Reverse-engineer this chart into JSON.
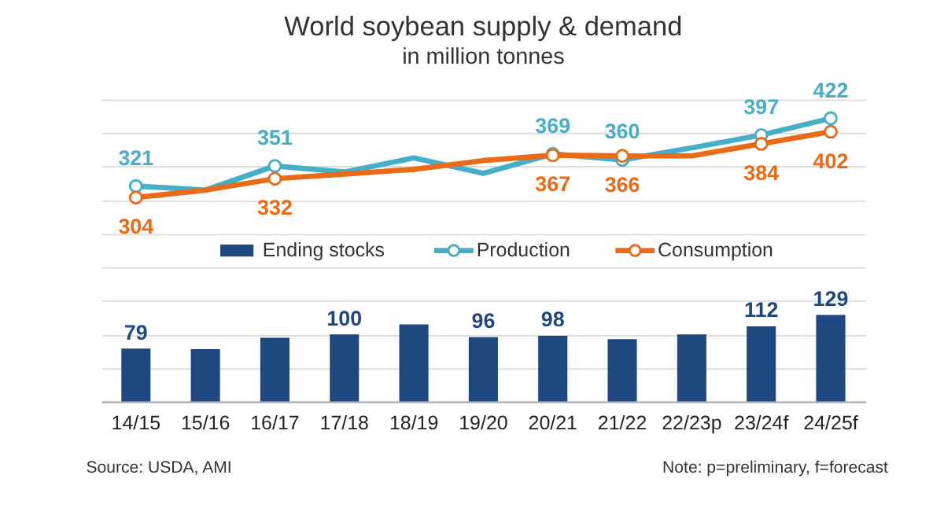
{
  "chart_data": {
    "type": "bar",
    "title": "World soybean supply & demand",
    "subtitle": "in million tonnes",
    "categories": [
      "14/15",
      "15/16",
      "16/17",
      "17/18",
      "18/19",
      "19/20",
      "20/21",
      "21/22",
      "22/23p",
      "23/24f",
      "24/25f"
    ],
    "series": [
      {
        "name": "Ending stocks",
        "color": "#1f4880",
        "values": [
          79,
          78,
          95,
          100,
          115,
          96,
          98,
          93,
          100,
          112,
          129
        ],
        "value_labels": [
          "79",
          null,
          null,
          "100",
          null,
          "96",
          "98",
          null,
          null,
          "112",
          "129"
        ]
      },
      {
        "name": "Production",
        "type": "line",
        "color": "#45afc8",
        "values": [
          321,
          315,
          351,
          342,
          363,
          340,
          369,
          360,
          378,
          397,
          422
        ],
        "value_labels": [
          "321",
          null,
          "351",
          null,
          null,
          null,
          "369",
          "360",
          null,
          "397",
          "422"
        ]
      },
      {
        "name": "Consumption",
        "type": "line",
        "color": "#ea6a16",
        "values": [
          304,
          315,
          332,
          339,
          346,
          359,
          367,
          366,
          366,
          384,
          402
        ],
        "value_labels": [
          "304",
          null,
          "332",
          null,
          null,
          null,
          "367",
          "366",
          null,
          "384",
          "402"
        ]
      }
    ],
    "ylim": [
      0,
      450
    ],
    "yticks": [
      {
        "value": 0,
        "label": null
      },
      {
        "value": 50,
        "label": null
      },
      {
        "value": 100,
        "label": null
      },
      {
        "value": 150,
        "label": null
      },
      {
        "value": 200,
        "label": null
      },
      {
        "value": 250,
        "label": null
      },
      {
        "value": 300,
        "label": null
      },
      {
        "value": 350,
        "label": null
      },
      {
        "value": 400,
        "label": null
      },
      {
        "value": 450,
        "label": null
      }
    ],
    "tick_labels": "x",
    "grid": "y",
    "legend": "center",
    "marker": "circle",
    "annotations": [
      "Source: USDA, AMI",
      "Note: p=preliminary, f=forecast"
    ]
  }
}
